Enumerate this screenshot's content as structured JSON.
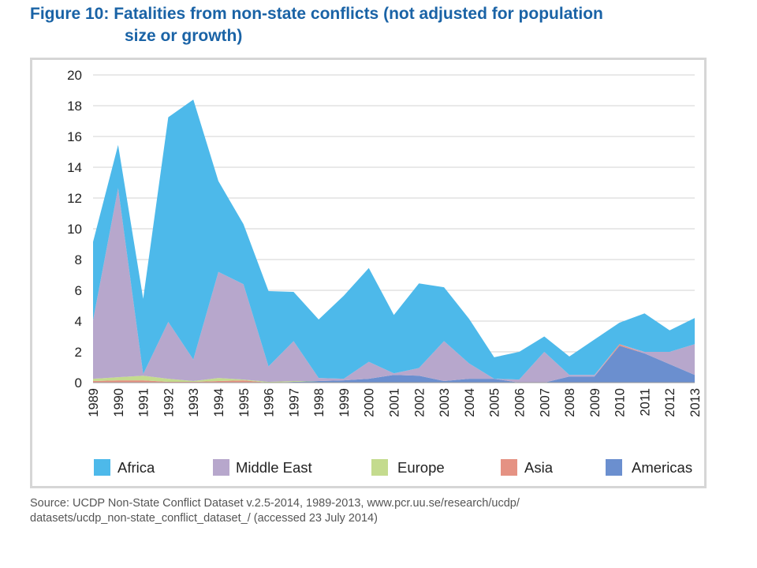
{
  "figure": {
    "title_line1": "Figure 10: Fatalities from non-state conflicts (not adjusted for population",
    "title_line2": "size or growth)",
    "source_line1": "Source: UCDP Non-State Conflict Dataset v.2.5-2014, 1989-2013,  www.pcr.uu.se/research/ucdp/",
    "source_line2": "datasets/ucdp_non-state_conflict_dataset_/ (accessed 23 July 2014)"
  },
  "chart_data": {
    "type": "area",
    "stacked": true,
    "title": "",
    "xlabel": "",
    "ylabel": "",
    "ylim": [
      0,
      20
    ],
    "yticks": [
      0,
      2,
      4,
      6,
      8,
      10,
      12,
      14,
      16,
      18,
      20
    ],
    "grid": "horizontal",
    "legend": "bottom",
    "x": [
      "1989",
      "1990",
      "1991",
      "1992",
      "1993",
      "1994",
      "1995",
      "1996",
      "1997",
      "1998",
      "1999",
      "2000",
      "2001",
      "2002",
      "2003",
      "2004",
      "2005",
      "2006",
      "2007",
      "2008",
      "2009",
      "2010",
      "2011",
      "2012",
      "2013"
    ],
    "series": [
      {
        "name": "Americas",
        "color": "#6b8fcf",
        "values": [
          0,
          0,
          0,
          0,
          0,
          0,
          0,
          0,
          0.05,
          0.1,
          0.15,
          0.25,
          0.5,
          0.45,
          0.1,
          0.25,
          0.25,
          0,
          0,
          0.4,
          0.4,
          2.4,
          1.9,
          1.2,
          0.5
        ]
      },
      {
        "name": "Asia",
        "color": "#e59283",
        "values": [
          0.1,
          0.15,
          0.15,
          0.05,
          0.05,
          0.1,
          0.15,
          0,
          0,
          0,
          0,
          0,
          0,
          0,
          0,
          0,
          0,
          0,
          0,
          0,
          0,
          0.1,
          0,
          0,
          0
        ]
      },
      {
        "name": "Europe",
        "color": "#c4db8e",
        "values": [
          0.15,
          0.2,
          0.3,
          0.2,
          0.05,
          0.2,
          0.05,
          0.05,
          0.05,
          0,
          0,
          0,
          0,
          0,
          0,
          0,
          0,
          0,
          0,
          0,
          0,
          0,
          0,
          0,
          0
        ]
      },
      {
        "name": "Middle East",
        "color": "#b7a7cc",
        "values": [
          3.8,
          12.3,
          0.1,
          3.7,
          1.4,
          6.9,
          6.2,
          1.0,
          2.6,
          0.2,
          0.1,
          1.1,
          0.1,
          0.5,
          2.6,
          1.0,
          0,
          0.2,
          2.0,
          0.1,
          0.1,
          0,
          0.1,
          0.8,
          2.0
        ]
      },
      {
        "name": "Africa",
        "color": "#4db9ea",
        "values": [
          5.1,
          2.8,
          4.9,
          13.3,
          16.9,
          5.9,
          3.9,
          4.9,
          3.2,
          3.8,
          5.4,
          6.1,
          3.8,
          5.5,
          3.5,
          2.9,
          1.4,
          1.8,
          1.0,
          1.2,
          2.3,
          1.4,
          2.5,
          1.4,
          1.7
        ]
      }
    ],
    "legend_order": [
      "Africa",
      "Middle East",
      "Europe",
      "Asia",
      "Americas"
    ]
  }
}
